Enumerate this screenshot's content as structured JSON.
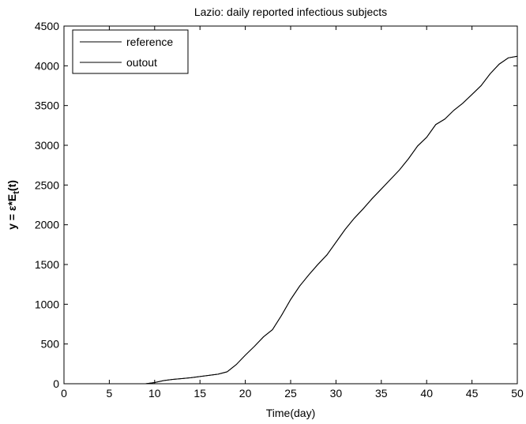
{
  "chart_data": {
    "type": "line",
    "title": "Lazio: daily reported infectious subjects",
    "xlabel": "Time(day)",
    "ylabel_main": "y = ε*E",
    "ylabel_sub": "t",
    "ylabel_tail": "(t)",
    "xlim": [
      0,
      50
    ],
    "ylim": [
      0,
      4500
    ],
    "xticks": [
      0,
      5,
      10,
      15,
      20,
      25,
      30,
      35,
      40,
      45,
      50
    ],
    "yticks": [
      0,
      500,
      1000,
      1500,
      2000,
      2500,
      3000,
      3500,
      4000,
      4500
    ],
    "grid": false,
    "legend_position": "top-left",
    "series": [
      {
        "name": "reference",
        "color": "#000000",
        "x": [
          9,
          10,
          11,
          12,
          13,
          14,
          15,
          16,
          17,
          18,
          19,
          20,
          21,
          22,
          23,
          24,
          25,
          26,
          27,
          28,
          29,
          30,
          31,
          32,
          33,
          34,
          35,
          36,
          37,
          38,
          39,
          40,
          41,
          42,
          43,
          44,
          45,
          46,
          47,
          48,
          49,
          50
        ],
        "y": [
          0,
          15,
          40,
          55,
          65,
          75,
          90,
          105,
          120,
          150,
          240,
          360,
          470,
          590,
          680,
          860,
          1060,
          1230,
          1370,
          1500,
          1620,
          1780,
          1940,
          2080,
          2200,
          2330,
          2450,
          2570,
          2690,
          2830,
          2990,
          3100,
          3260,
          3330,
          3440,
          3530,
          3640,
          3750,
          3900,
          4020,
          4100,
          4120
        ]
      },
      {
        "name": "outout",
        "color": "#000000",
        "x": [
          9,
          10,
          11,
          12,
          13,
          14,
          15,
          16,
          17,
          18,
          19,
          20,
          21,
          22,
          23,
          24,
          25,
          26,
          27,
          28,
          29,
          30,
          31,
          32,
          33,
          34,
          35,
          36,
          37,
          38,
          39,
          40,
          41,
          42,
          43,
          44,
          45,
          46,
          47,
          48,
          49,
          50
        ],
        "y": [
          0,
          15,
          40,
          55,
          65,
          75,
          90,
          105,
          120,
          150,
          240,
          360,
          470,
          590,
          680,
          860,
          1060,
          1230,
          1370,
          1500,
          1620,
          1780,
          1940,
          2080,
          2200,
          2330,
          2450,
          2570,
          2690,
          2830,
          2990,
          3100,
          3260,
          3330,
          3440,
          3530,
          3640,
          3750,
          3900,
          4020,
          4100,
          4120
        ]
      }
    ]
  }
}
